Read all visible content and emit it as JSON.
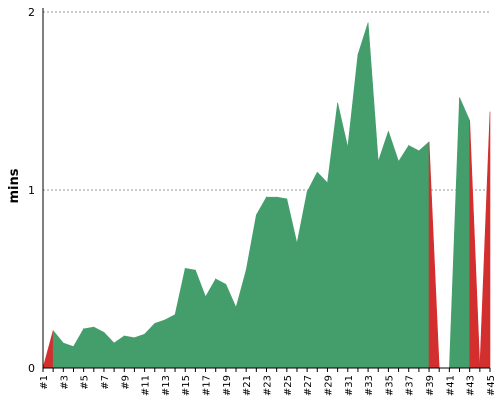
{
  "chart_data": {
    "type": "area",
    "title": "",
    "xlabel": "",
    "ylabel": "mins",
    "ylim": [
      0,
      2
    ],
    "yticks": [
      "0",
      "1",
      "2"
    ],
    "grid": true,
    "categories": [
      "#1",
      "#2",
      "#3",
      "#4",
      "#5",
      "#6",
      "#7",
      "#8",
      "#9",
      "#10",
      "#11",
      "#12",
      "#13",
      "#14",
      "#15",
      "#16",
      "#17",
      "#18",
      "#19",
      "#20",
      "#21",
      "#22",
      "#23",
      "#24",
      "#25",
      "#26",
      "#27",
      "#28",
      "#29",
      "#30",
      "#31",
      "#32",
      "#33",
      "#34",
      "#35",
      "#36",
      "#37",
      "#38",
      "#39",
      "#40",
      "#41",
      "#42",
      "#43",
      "#44",
      "#45"
    ],
    "values": [
      0.0,
      0.21,
      0.14,
      0.12,
      0.22,
      0.23,
      0.2,
      0.14,
      0.18,
      0.17,
      0.19,
      0.25,
      0.27,
      0.3,
      0.56,
      0.55,
      0.4,
      0.5,
      0.47,
      0.34,
      0.55,
      0.86,
      0.96,
      0.96,
      0.95,
      0.7,
      0.99,
      1.1,
      1.04,
      1.49,
      1.24,
      1.76,
      1.94,
      1.16,
      1.33,
      1.16,
      1.25,
      1.22,
      1.27,
      0.0,
      0.0,
      1.52,
      1.39,
      0.0,
      1.44
    ],
    "status": [
      "fail",
      "fail",
      "success",
      "success",
      "success",
      "success",
      "success",
      "success",
      "success",
      "success",
      "success",
      "success",
      "success",
      "success",
      "success",
      "success",
      "success",
      "success",
      "success",
      "success",
      "success",
      "success",
      "success",
      "success",
      "success",
      "success",
      "success",
      "success",
      "success",
      "success",
      "success",
      "success",
      "success",
      "success",
      "success",
      "success",
      "success",
      "success",
      "success",
      "fail",
      "fail",
      "success",
      "success",
      "fail",
      "fail"
    ],
    "colors": {
      "success": "#449e6c",
      "fail": "#d32f2f"
    }
  }
}
